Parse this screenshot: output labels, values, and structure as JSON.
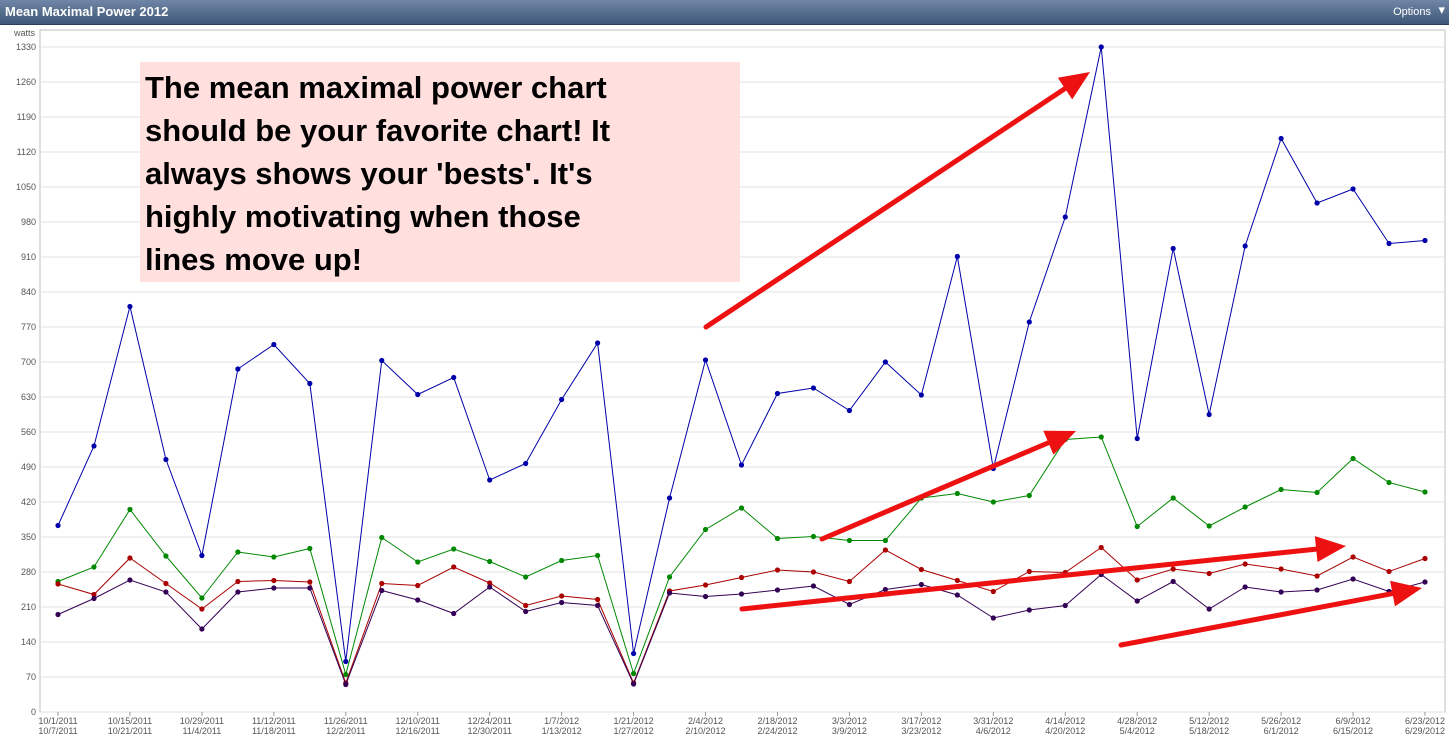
{
  "window": {
    "title": "Mean Maximal Power 2012",
    "options_label": "Options",
    "options_arrow": "▾"
  },
  "callout_text": "The mean maximal power chart\nshould be your favorite chart!  It\nalways shows your 'bests'.   It's\nhighly motivating when those\nlines move up!",
  "colors": {
    "callout_bg": "#ffe0de",
    "arrow": "#ee1111",
    "grid": "#e0e0e0"
  },
  "chart_data": {
    "type": "line",
    "ylabel": "watts",
    "ylim": [
      0,
      1330
    ],
    "yticks": [
      0,
      70,
      140,
      210,
      280,
      350,
      420,
      490,
      560,
      630,
      700,
      770,
      840,
      910,
      980,
      1050,
      1120,
      1190,
      1260,
      1330
    ],
    "grid": true,
    "x_labels": [
      [
        "10/1/2011",
        "10/7/2011"
      ],
      [
        "10/15/2011",
        "10/21/2011"
      ],
      [
        "10/29/2011",
        "11/4/2011"
      ],
      [
        "11/12/2011",
        "11/18/2011"
      ],
      [
        "11/26/2011",
        "12/2/2011"
      ],
      [
        "12/10/2011",
        "12/16/2011"
      ],
      [
        "12/24/2011",
        "12/30/2011"
      ],
      [
        "1/7/2012",
        "1/13/2012"
      ],
      [
        "1/21/2012",
        "1/27/2012"
      ],
      [
        "2/4/2012",
        "2/10/2012"
      ],
      [
        "2/18/2012",
        "2/24/2012"
      ],
      [
        "3/3/2012",
        "3/9/2012"
      ],
      [
        "3/17/2012",
        "3/23/2012"
      ],
      [
        "3/31/2012",
        "4/6/2012"
      ],
      [
        "4/14/2012",
        "4/20/2012"
      ],
      [
        "4/28/2012",
        "5/4/2012"
      ],
      [
        "5/12/2012",
        "5/18/2012"
      ],
      [
        "5/26/2012",
        "6/1/2012"
      ],
      [
        "6/9/2012",
        "6/15/2012"
      ],
      [
        "6/23/2012",
        "6/29/2012"
      ]
    ],
    "series": [
      {
        "color": "#0000aa",
        "values": [
          373,
          532,
          811,
          505,
          313,
          686,
          735,
          657,
          101,
          703,
          635,
          669,
          464,
          497,
          625,
          738,
          117,
          428,
          704,
          494,
          637,
          648,
          603,
          700,
          634,
          911,
          487,
          780,
          990,
          1330,
          547,
          927,
          595,
          932,
          1147,
          1018,
          1046,
          937,
          943
        ]
      },
      {
        "color": "#008800",
        "values": [
          261,
          290,
          405,
          312,
          228,
          320,
          310,
          327,
          75,
          349,
          300,
          326,
          301,
          270,
          303,
          313,
          77,
          270,
          365,
          408,
          347,
          351,
          343,
          343,
          428,
          437,
          420,
          433,
          545,
          550,
          371,
          428,
          372,
          410,
          445,
          439,
          507,
          459,
          440
        ]
      },
      {
        "color": "#aa0000",
        "values": [
          256,
          235,
          308,
          257,
          206,
          261,
          263,
          260,
          58,
          257,
          253,
          290,
          258,
          213,
          232,
          225,
          58,
          242,
          254,
          269,
          284,
          280,
          261,
          324,
          285,
          263,
          241,
          281,
          279,
          329,
          264,
          286,
          277,
          296,
          286,
          272,
          310,
          281,
          307
        ]
      },
      {
        "color": "#330055",
        "values": [
          195,
          227,
          264,
          240,
          166,
          240,
          248,
          248,
          55,
          243,
          224,
          197,
          250,
          201,
          219,
          213,
          56,
          238,
          231,
          236,
          244,
          252,
          215,
          245,
          255,
          234,
          188,
          204,
          213,
          275,
          222,
          261,
          206,
          250,
          240,
          244,
          266,
          241,
          260
        ]
      }
    ]
  }
}
